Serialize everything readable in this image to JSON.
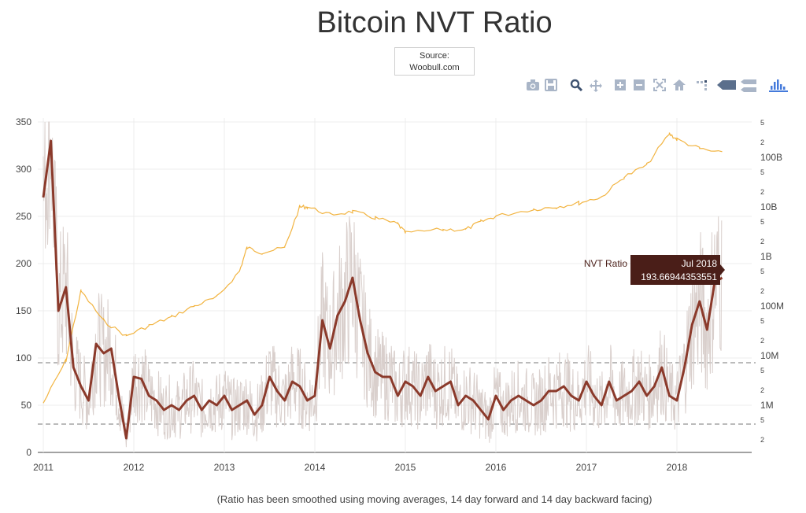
{
  "title": "Bitcoin NVT Ratio",
  "source": {
    "line1": "Source:",
    "line2": "Woobull.com"
  },
  "footnote": "(Ratio has been smoothed using moving averages, 14 day forward and 14 day backward facing)",
  "toolbar": [
    {
      "icon": "camera-icon"
    },
    {
      "icon": "save-icon"
    },
    {
      "icon": "zoom-icon"
    },
    {
      "icon": "pan-icon"
    },
    {
      "icon": "zoom-in-icon"
    },
    {
      "icon": "zoom-out-icon"
    },
    {
      "icon": "autoscale-icon"
    },
    {
      "icon": "home-icon"
    },
    {
      "icon": "spike-lines-icon"
    },
    {
      "icon": "hover-closest-icon"
    },
    {
      "icon": "hover-compare-icon"
    },
    {
      "icon": "plotly-logo-icon"
    }
  ],
  "tooltip": {
    "series": "NVT Ratio",
    "date": "Jul 2018",
    "value": "193.66944353551"
  },
  "colors": {
    "nvt": "#8b3a2b",
    "raw": "#d9cfcc",
    "marketcap": "#f2b441",
    "tooltip_bg": "#4a1e18",
    "threshold": "#777777"
  },
  "chart_data": {
    "type": "line",
    "x_ticks": [
      "2011",
      "2012",
      "2013",
      "2014",
      "2015",
      "2016",
      "2017",
      "2018"
    ],
    "y_left_ticks": [
      "0",
      "50",
      "100",
      "150",
      "200",
      "250",
      "300",
      "350"
    ],
    "y_left_range": [
      0,
      350
    ],
    "y_right_scale": "log",
    "y_right_big_ticks": [
      "1M",
      "10M",
      "100M",
      "1B",
      "10B",
      "100B"
    ],
    "y_right_small_ticks": [
      "2",
      "5"
    ],
    "thresholds": [
      30,
      95
    ],
    "series": [
      {
        "name": "NVT Ratio",
        "axis": "left",
        "x": [
          "2011-01",
          "2011-02",
          "2011-03",
          "2011-04",
          "2011-05",
          "2011-06",
          "2011-07",
          "2011-08",
          "2011-09",
          "2011-10",
          "2011-11",
          "2011-12",
          "2012-01",
          "2012-02",
          "2012-03",
          "2012-04",
          "2012-05",
          "2012-06",
          "2012-07",
          "2012-08",
          "2012-09",
          "2012-10",
          "2012-11",
          "2012-12",
          "2013-01",
          "2013-02",
          "2013-03",
          "2013-04",
          "2013-05",
          "2013-06",
          "2013-07",
          "2013-08",
          "2013-09",
          "2013-10",
          "2013-11",
          "2013-12",
          "2014-01",
          "2014-02",
          "2014-03",
          "2014-04",
          "2014-05",
          "2014-06",
          "2014-07",
          "2014-08",
          "2014-09",
          "2014-10",
          "2014-11",
          "2014-12",
          "2015-01",
          "2015-02",
          "2015-03",
          "2015-04",
          "2015-05",
          "2015-06",
          "2015-07",
          "2015-08",
          "2015-09",
          "2015-10",
          "2015-11",
          "2015-12",
          "2016-01",
          "2016-02",
          "2016-03",
          "2016-04",
          "2016-05",
          "2016-06",
          "2016-07",
          "2016-08",
          "2016-09",
          "2016-10",
          "2016-11",
          "2016-12",
          "2017-01",
          "2017-02",
          "2017-03",
          "2017-04",
          "2017-05",
          "2017-06",
          "2017-07",
          "2017-08",
          "2017-09",
          "2017-10",
          "2017-11",
          "2017-12",
          "2018-01",
          "2018-02",
          "2018-03",
          "2018-04",
          "2018-05",
          "2018-06",
          "2018-07"
        ],
        "values": [
          270,
          330,
          150,
          175,
          90,
          70,
          55,
          115,
          105,
          110,
          60,
          15,
          80,
          78,
          60,
          55,
          45,
          50,
          45,
          55,
          60,
          45,
          55,
          50,
          60,
          45,
          50,
          55,
          40,
          50,
          80,
          65,
          55,
          75,
          70,
          55,
          60,
          140,
          110,
          145,
          160,
          185,
          140,
          105,
          85,
          80,
          80,
          60,
          75,
          70,
          60,
          80,
          65,
          70,
          75,
          50,
          60,
          55,
          45,
          35,
          60,
          45,
          55,
          60,
          55,
          50,
          55,
          65,
          65,
          70,
          60,
          55,
          75,
          60,
          50,
          75,
          55,
          60,
          65,
          75,
          60,
          70,
          90,
          60,
          55,
          90,
          135,
          160,
          130,
          180,
          185
        ]
      },
      {
        "name": "Market Cap",
        "axis": "right",
        "x": [
          "2011-01",
          "2011-04",
          "2011-06",
          "2011-09",
          "2011-12",
          "2012-03",
          "2012-06",
          "2012-09",
          "2012-12",
          "2013-03",
          "2013-04",
          "2013-06",
          "2013-09",
          "2013-11",
          "2013-12",
          "2014-03",
          "2014-06",
          "2014-09",
          "2014-12",
          "2015-01",
          "2015-06",
          "2015-09",
          "2015-11",
          "2016-01",
          "2016-06",
          "2016-09",
          "2016-12",
          "2017-03",
          "2017-06",
          "2017-09",
          "2017-12",
          "2018-01",
          "2018-04",
          "2018-07"
        ],
        "values": [
          1100000,
          8000000,
          200000000,
          50000000,
          25000000,
          40000000,
          60000000,
          100000000,
          150000000,
          500000000,
          1500000000,
          1200000000,
          1500000000,
          10000000000,
          10000000000,
          7000000000,
          8000000000,
          6000000000,
          4500000000,
          3000000000,
          3500000000,
          3500000000,
          5000000000,
          6500000000,
          9000000000,
          10000000000,
          12000000000,
          16000000000,
          40000000000,
          70000000000,
          300000000000,
          230000000000,
          150000000000,
          120000000000
        ]
      }
    ]
  }
}
